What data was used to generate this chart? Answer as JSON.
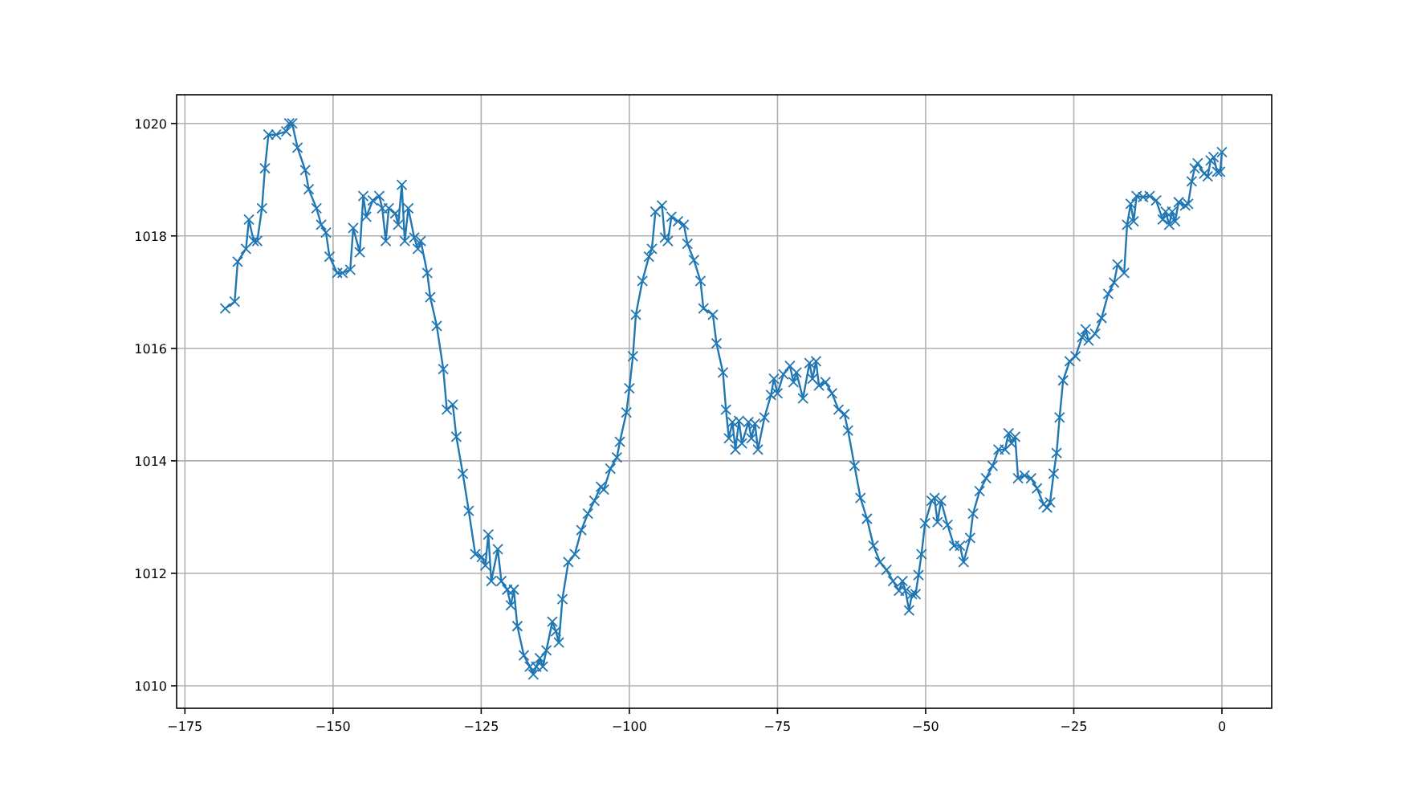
{
  "chart_data": {
    "type": "line",
    "marker": "cross",
    "grid": true,
    "line_style": "solid",
    "xlim": [
      -176.4,
      8.4
    ],
    "ylim": [
      1009.6,
      1020.51
    ],
    "xticks": [
      -175,
      -150,
      -125,
      -100,
      -75,
      -50,
      -25,
      0
    ],
    "yticks": [
      1010,
      1012,
      1014,
      1016,
      1018,
      1020
    ],
    "series": [
      {
        "color": "#1f77b4",
        "x": [
          -168.2,
          -166.6,
          -166.1,
          -164.7,
          -164.2,
          -163.4,
          -162.8,
          -162.0,
          -161.5,
          -160.9,
          -159.6,
          -157.9,
          -157.4,
          -156.9,
          -156.0,
          -154.7,
          -154.1,
          -152.8,
          -152.0,
          -151.2,
          -150.6,
          -149.3,
          -148.4,
          -147.1,
          -146.6,
          -145.5,
          -144.9,
          -144.4,
          -143.3,
          -142.2,
          -141.7,
          -141.1,
          -140.6,
          -139.5,
          -139.0,
          -138.4,
          -137.9,
          -137.3,
          -136.3,
          -135.7,
          -135.2,
          -134.1,
          -133.6,
          -132.5,
          -131.4,
          -130.8,
          -129.8,
          -129.2,
          -128.1,
          -127.1,
          -126.0,
          -124.9,
          -124.3,
          -123.8,
          -123.3,
          -122.2,
          -121.6,
          -120.6,
          -120.0,
          -119.5,
          -118.9,
          -117.8,
          -116.8,
          -116.2,
          -115.7,
          -115.1,
          -114.6,
          -114.0,
          -113.0,
          -112.4,
          -111.9,
          -111.3,
          -110.3,
          -109.2,
          -108.1,
          -107.0,
          -105.9,
          -104.8,
          -104.3,
          -103.2,
          -102.1,
          -101.6,
          -100.5,
          -100.0,
          -99.4,
          -98.9,
          -97.8,
          -96.7,
          -96.2,
          -95.6,
          -94.5,
          -94.0,
          -93.5,
          -92.9,
          -91.8,
          -90.8,
          -90.2,
          -89.1,
          -88.0,
          -87.5,
          -85.9,
          -85.3,
          -84.2,
          -83.7,
          -83.2,
          -82.6,
          -82.1,
          -81.5,
          -81.0,
          -79.9,
          -79.4,
          -78.8,
          -78.3,
          -77.2,
          -76.1,
          -75.6,
          -75.0,
          -74.0,
          -72.9,
          -72.3,
          -71.8,
          -70.7,
          -69.6,
          -69.1,
          -68.5,
          -68.0,
          -66.9,
          -65.8,
          -64.7,
          -63.7,
          -63.1,
          -62.0,
          -61.0,
          -59.9,
          -58.8,
          -57.7,
          -56.6,
          -55.5,
          -54.5,
          -53.9,
          -53.4,
          -52.8,
          -52.3,
          -51.7,
          -51.2,
          -50.7,
          -50.1,
          -49.0,
          -48.5,
          -48.0,
          -47.4,
          -46.3,
          -45.2,
          -44.2,
          -43.6,
          -42.5,
          -42.0,
          -40.9,
          -39.8,
          -38.7,
          -37.7,
          -36.6,
          -36.0,
          -35.5,
          -34.9,
          -34.4,
          -33.3,
          -32.2,
          -31.2,
          -30.1,
          -29.5,
          -29.0,
          -28.4,
          -27.9,
          -27.4,
          -26.8,
          -25.7,
          -24.7,
          -23.6,
          -23.0,
          -22.5,
          -21.4,
          -20.3,
          -19.2,
          -18.2,
          -17.6,
          -16.5,
          -16.0,
          -15.4,
          -14.9,
          -14.4,
          -13.3,
          -12.2,
          -11.1,
          -10.0,
          -9.5,
          -8.9,
          -8.4,
          -7.9,
          -7.3,
          -6.2,
          -5.7,
          -5.1,
          -4.6,
          -4.1,
          -3.0,
          -2.4,
          -1.9,
          -1.4,
          -0.8,
          -0.3,
          0
        ],
        "values": [
          1016.71,
          1016.83,
          1017.54,
          1017.77,
          1018.29,
          1017.91,
          1017.91,
          1018.49,
          1019.2,
          1019.8,
          1019.8,
          1019.86,
          1020.0,
          1020.0,
          1019.57,
          1019.17,
          1018.83,
          1018.49,
          1018.2,
          1018.06,
          1017.63,
          1017.34,
          1017.34,
          1017.4,
          1018.14,
          1017.71,
          1018.71,
          1018.34,
          1018.63,
          1018.71,
          1018.49,
          1017.91,
          1018.49,
          1018.4,
          1018.2,
          1018.91,
          1017.91,
          1018.49,
          1017.97,
          1017.77,
          1017.91,
          1017.34,
          1016.91,
          1016.4,
          1015.63,
          1014.91,
          1015.0,
          1014.43,
          1013.77,
          1013.11,
          1012.34,
          1012.29,
          1012.14,
          1012.69,
          1011.86,
          1012.43,
          1011.86,
          1011.71,
          1011.43,
          1011.71,
          1011.06,
          1010.54,
          1010.34,
          1010.2,
          1010.34,
          1010.49,
          1010.34,
          1010.63,
          1011.14,
          1010.97,
          1010.77,
          1011.54,
          1012.2,
          1012.34,
          1012.77,
          1013.06,
          1013.29,
          1013.54,
          1013.49,
          1013.86,
          1014.06,
          1014.34,
          1014.86,
          1015.29,
          1015.86,
          1016.6,
          1017.2,
          1017.63,
          1017.77,
          1018.43,
          1018.54,
          1017.97,
          1017.91,
          1018.34,
          1018.26,
          1018.2,
          1017.86,
          1017.57,
          1017.2,
          1016.71,
          1016.6,
          1016.09,
          1015.57,
          1014.91,
          1014.4,
          1014.69,
          1014.2,
          1014.71,
          1014.31,
          1014.69,
          1014.4,
          1014.66,
          1014.2,
          1014.77,
          1015.17,
          1015.46,
          1015.2,
          1015.54,
          1015.69,
          1015.4,
          1015.57,
          1015.11,
          1015.74,
          1015.46,
          1015.77,
          1015.34,
          1015.4,
          1015.2,
          1014.91,
          1014.83,
          1014.54,
          1013.91,
          1013.34,
          1012.97,
          1012.49,
          1012.2,
          1012.06,
          1011.86,
          1011.69,
          1011.86,
          1011.69,
          1011.34,
          1011.63,
          1011.63,
          1011.97,
          1012.34,
          1012.89,
          1013.29,
          1013.34,
          1012.91,
          1013.29,
          1012.86,
          1012.49,
          1012.49,
          1012.2,
          1012.63,
          1013.06,
          1013.46,
          1013.69,
          1013.91,
          1014.2,
          1014.2,
          1014.49,
          1014.31,
          1014.43,
          1013.69,
          1013.74,
          1013.69,
          1013.51,
          1013.23,
          1013.17,
          1013.26,
          1013.77,
          1014.14,
          1014.77,
          1015.43,
          1015.77,
          1015.86,
          1016.2,
          1016.34,
          1016.14,
          1016.26,
          1016.54,
          1016.97,
          1017.17,
          1017.49,
          1017.34,
          1018.2,
          1018.57,
          1018.26,
          1018.71,
          1018.69,
          1018.71,
          1018.63,
          1018.29,
          1018.43,
          1018.2,
          1018.43,
          1018.26,
          1018.6,
          1018.54,
          1018.57,
          1018.97,
          1019.2,
          1019.29,
          1019.11,
          1019.06,
          1019.34,
          1019.4,
          1019.14,
          1019.14,
          1019.49
        ]
      }
    ]
  }
}
